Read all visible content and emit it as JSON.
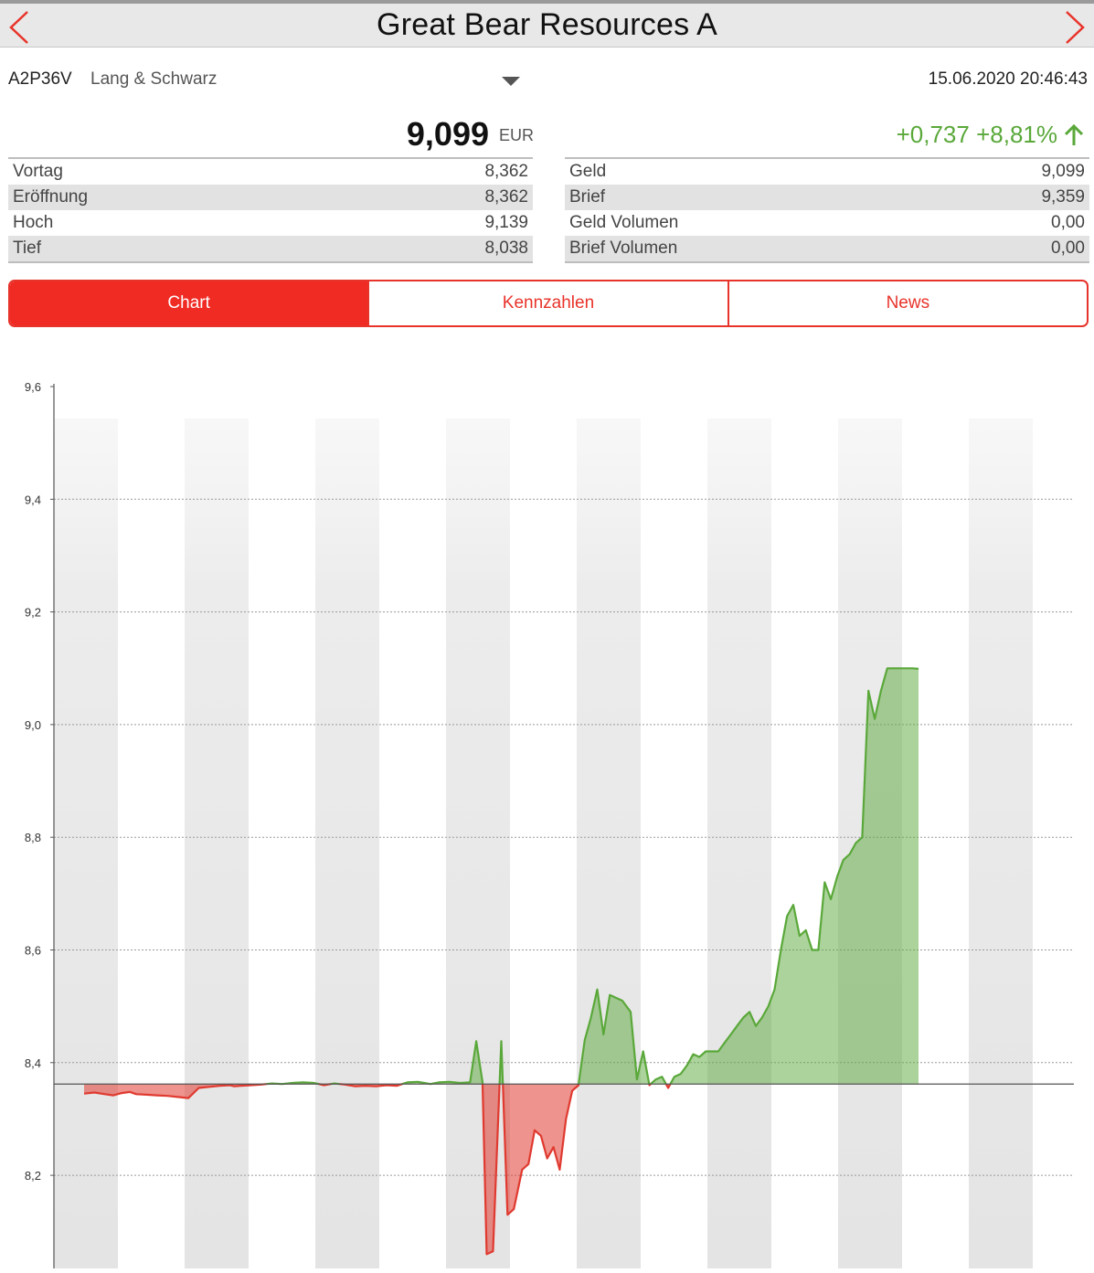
{
  "header": {
    "title": "Great Bear Resources A"
  },
  "security": {
    "wkn": "A2P36V",
    "exchange": "Lang & Schwarz",
    "timestamp": "15.06.2020 20:46:43",
    "price": "9,099",
    "currency": "EUR",
    "change_abs": "+0,737",
    "change_pct": "+8,81%"
  },
  "stats_left": [
    {
      "label": "Vortag",
      "value": "8,362"
    },
    {
      "label": "Eröffnung",
      "value": "8,362"
    },
    {
      "label": "Hoch",
      "value": "9,139"
    },
    {
      "label": "Tief",
      "value": "8,038"
    }
  ],
  "stats_right": [
    {
      "label": "Geld",
      "value": "9,099"
    },
    {
      "label": "Brief",
      "value": "9,359"
    },
    {
      "label": "Geld Volumen",
      "value": "0,00"
    },
    {
      "label": "Brief Volumen",
      "value": "0,00"
    }
  ],
  "tabs": [
    {
      "label": "Chart",
      "active": true
    },
    {
      "label": "Kennzahlen",
      "active": false
    },
    {
      "label": "News",
      "active": false
    }
  ],
  "colors": {
    "accent": "#ef2b24",
    "up": "#5aa83a",
    "down": "#e03a30"
  },
  "chart_data": {
    "type": "area",
    "baseline": 8.362,
    "ylim": [
      8.02,
      9.6
    ],
    "yticks": [
      "9,6",
      "9,4",
      "9,2",
      "9,0",
      "8,8",
      "8,6",
      "8,4",
      "8,2"
    ],
    "ytick_values": [
      9.6,
      9.4,
      9.2,
      9.0,
      8.8,
      8.6,
      8.4,
      8.2
    ],
    "grid": true,
    "x": [
      0,
      5,
      10,
      14,
      18,
      22,
      25,
      30,
      35,
      40,
      45,
      50,
      55,
      60,
      65,
      70,
      72,
      75,
      80,
      85,
      90,
      95,
      100,
      105,
      110,
      115,
      120,
      125,
      130,
      135,
      140,
      145,
      150,
      155,
      160,
      163,
      166,
      170,
      175,
      180,
      185,
      188,
      191,
      193,
      196,
      200,
      203,
      206,
      210,
      213,
      216,
      219,
      222,
      225,
      228,
      231,
      234,
      237,
      240,
      243,
      246,
      249,
      252,
      255,
      258,
      262,
      265,
      268,
      271,
      274,
      277,
      280,
      283,
      286,
      289,
      292,
      295,
      298,
      301,
      304,
      307,
      310,
      313,
      316,
      319,
      322,
      325,
      328,
      331,
      334,
      337,
      340,
      343,
      346,
      349,
      352,
      355,
      358,
      361,
      364,
      367,
      370,
      373,
      376,
      379,
      382,
      385,
      388,
      391,
      394,
      397,
      400
    ],
    "y": [
      8.345,
      8.347,
      8.344,
      8.342,
      8.346,
      8.348,
      8.344,
      8.343,
      8.342,
      8.341,
      8.339,
      8.337,
      8.355,
      8.357,
      8.359,
      8.36,
      8.358,
      8.359,
      8.36,
      8.361,
      8.363,
      8.362,
      8.364,
      8.365,
      8.364,
      8.36,
      8.363,
      8.361,
      8.358,
      8.359,
      8.358,
      8.36,
      8.359,
      8.365,
      8.366,
      8.364,
      8.362,
      8.365,
      8.366,
      8.364,
      8.365,
      8.438,
      8.365,
      8.06,
      8.065,
      8.438,
      8.13,
      8.14,
      8.21,
      8.22,
      8.28,
      8.27,
      8.23,
      8.25,
      8.21,
      8.3,
      8.35,
      8.36,
      8.44,
      8.48,
      8.53,
      8.45,
      8.52,
      8.515,
      8.51,
      8.49,
      8.37,
      8.42,
      8.36,
      8.37,
      8.375,
      8.355,
      8.375,
      8.38,
      8.395,
      8.415,
      8.41,
      8.42,
      8.42,
      8.42,
      8.435,
      8.45,
      8.465,
      8.48,
      8.49,
      8.465,
      8.48,
      8.5,
      8.53,
      8.6,
      8.66,
      8.68,
      8.625,
      8.635,
      8.6,
      8.6,
      8.72,
      8.69,
      8.73,
      8.76,
      8.77,
      8.79,
      8.8,
      9.06,
      9.01,
      9.06,
      9.1,
      9.1,
      9.1,
      9.1,
      9.1,
      9.099
    ]
  }
}
